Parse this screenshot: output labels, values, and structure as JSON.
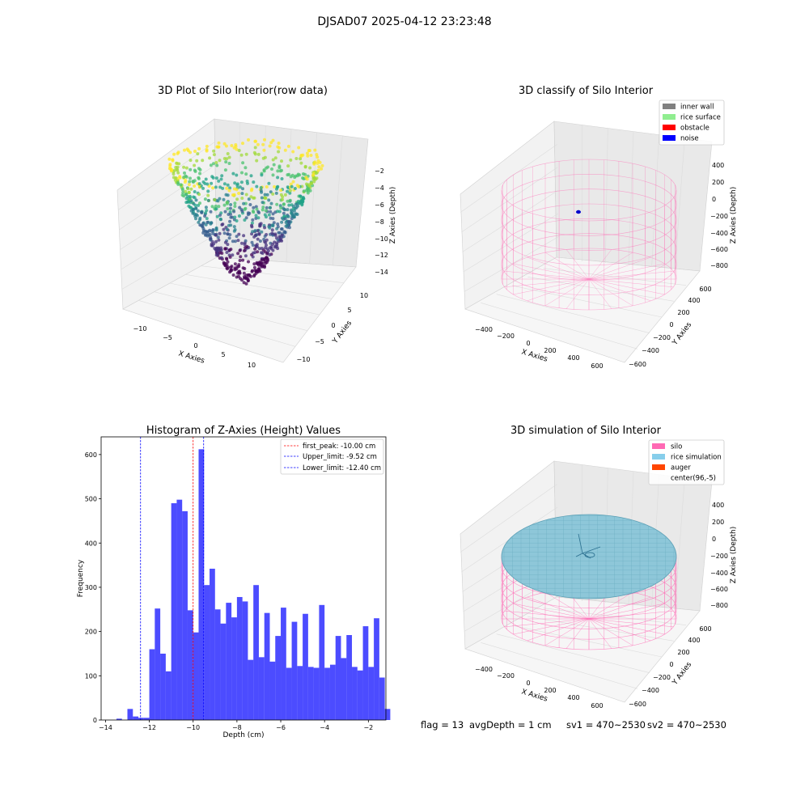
{
  "figure": {
    "suptitle": "DJSAD07 2025-04-12 23:23:48",
    "footer": {
      "flag": "flag = 13",
      "avg_depth": "avgDepth = 1 cm",
      "sv1": "sv1 = 470~2530",
      "sv2": "sv2 = 470~2530"
    }
  },
  "chart_data": [
    {
      "type": "scatter",
      "title": "3D Plot of Silo Interior(row data)",
      "xlabel": "X Axies",
      "ylabel": "Y Axies",
      "zlabel": "Z Axies (Depth)",
      "x_ticks": [
        "−10",
        "−5",
        "0",
        "5",
        "10"
      ],
      "y_ticks": [
        "−10",
        "−5",
        "0",
        "5",
        "10"
      ],
      "z_ticks": [
        "−14",
        "−12",
        "−10",
        "−8",
        "−6",
        "−4",
        "−2"
      ],
      "xlim": [
        -13,
        13
      ],
      "ylim": [
        -13,
        13
      ],
      "zlim": [
        -14.5,
        -1.5
      ],
      "colormap": "viridis",
      "shape": "bowl",
      "rim_depth": -2,
      "bottom_depth": -14
    },
    {
      "type": "scatter",
      "title": "3D classify of Silo Interior",
      "xlabel": "X Axies",
      "ylabel": "Y Axies",
      "zlabel": "Z Axies (Depth)",
      "x_ticks": [
        "−400",
        "−200",
        "0",
        "200",
        "400",
        "600"
      ],
      "y_ticks": [
        "−600",
        "−400",
        "−200",
        "0",
        "200",
        "400",
        "600"
      ],
      "z_ticks": [
        "−800",
        "−600",
        "−400",
        "−200",
        "0",
        "200",
        "400"
      ],
      "legend": [
        {
          "label": "inner wall",
          "color": "#808080"
        },
        {
          "label": "rice surface",
          "color": "#90ee90"
        },
        {
          "label": "obstacle",
          "color": "#ff0000"
        },
        {
          "label": "noise",
          "color": "#0000ff"
        }
      ],
      "legend_position": "top-right",
      "wireframe_color": "#ff69b4"
    },
    {
      "type": "bar",
      "title": "Histogram of Z-Axies (Height) Values",
      "xlabel": "Depth (cm)",
      "ylabel": "Frequency",
      "xlim": [
        -14.2,
        -1.2
      ],
      "ylim": [
        0,
        640
      ],
      "x_ticks": [
        -14,
        -12,
        -10,
        -8,
        -6,
        -4,
        -2
      ],
      "x_tick_labels": [
        "−14",
        "−12",
        "−10",
        "−8",
        "−6",
        "−4",
        "−2"
      ],
      "y_ticks": [
        0,
        100,
        200,
        300,
        400,
        500,
        600
      ],
      "y_tick_labels": [
        "0",
        "100",
        "200",
        "300",
        "400",
        "500",
        "600"
      ],
      "bar_color": "#0000ff",
      "bin_edges_start": -14.0,
      "bin_width": 0.25,
      "values": [
        0,
        0,
        3,
        0,
        25,
        8,
        5,
        5,
        160,
        252,
        150,
        110,
        490,
        498,
        472,
        248,
        198,
        612,
        305,
        342,
        250,
        218,
        265,
        232,
        278,
        268,
        136,
        305,
        142,
        242,
        132,
        190,
        254,
        118,
        222,
        122,
        240,
        120,
        118,
        260,
        118,
        125,
        190,
        140,
        192,
        120,
        112,
        212,
        120,
        230,
        96,
        25
      ],
      "lines": [
        {
          "label": "first_peak: -10.00 cm",
          "x": -10.0,
          "color": "#ff0000"
        },
        {
          "label": "Upper_limit: -9.52 cm",
          "x": -9.52,
          "color": "#0000ff"
        },
        {
          "label": "Lower_limit: -12.40 cm",
          "x": -12.4,
          "color": "#0000ff"
        }
      ],
      "legend_position": "top-right"
    },
    {
      "type": "scatter",
      "title": "3D simulation of Silo Interior",
      "xlabel": "X Axies",
      "ylabel": "Y Axies",
      "zlabel": "Z Axies (Depth)",
      "x_ticks": [
        "−400",
        "−200",
        "0",
        "200",
        "400",
        "600"
      ],
      "y_ticks": [
        "−600",
        "−400",
        "−200",
        "0",
        "200",
        "400",
        "600"
      ],
      "z_ticks": [
        "−800",
        "−600",
        "−400",
        "−200",
        "0",
        "200",
        "400"
      ],
      "legend": [
        {
          "label": "silo",
          "color": "#ff69b4"
        },
        {
          "label": "rice simulation",
          "color": "#87ceeb"
        },
        {
          "label": "auger",
          "color": "#ff4500"
        },
        {
          "label": "center(96,-5)",
          "color": ""
        }
      ],
      "legend_position": "top-right",
      "surface_color": "#8ec7d9"
    }
  ]
}
